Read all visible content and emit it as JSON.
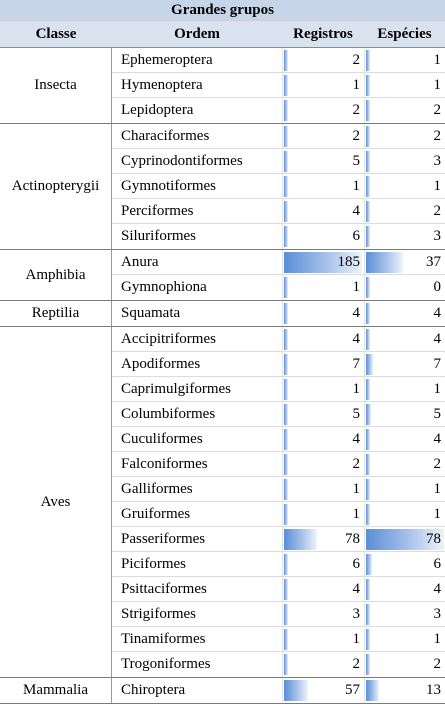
{
  "title": "Grandes grupos",
  "headers": {
    "classe": "Classe",
    "ordem": "Ordem",
    "registros": "Registros",
    "especies": "Espécies"
  },
  "max": {
    "registros": 185,
    "especies": 78
  },
  "colors": {
    "title_bg": "#c6d5e8",
    "header_bg": "#d9e3f0",
    "bar_start": "#5b8ed6",
    "bar_end": "#eef3fb"
  },
  "groups": [
    {
      "classe": "Insecta",
      "rows": [
        {
          "ordem": "Ephemeroptera",
          "registros": 2,
          "especies": 1
        },
        {
          "ordem": "Hymenoptera",
          "registros": 1,
          "especies": 1
        },
        {
          "ordem": "Lepidoptera",
          "registros": 2,
          "especies": 2
        }
      ]
    },
    {
      "classe": "Actinopterygii",
      "rows": [
        {
          "ordem": "Characiformes",
          "registros": 2,
          "especies": 2
        },
        {
          "ordem": "Cyprinodontiformes",
          "registros": 5,
          "especies": 3
        },
        {
          "ordem": "Gymnotiformes",
          "registros": 1,
          "especies": 1
        },
        {
          "ordem": "Perciformes",
          "registros": 4,
          "especies": 2
        },
        {
          "ordem": "Siluriformes",
          "registros": 6,
          "especies": 3
        }
      ]
    },
    {
      "classe": "Amphibia",
      "rows": [
        {
          "ordem": "Anura",
          "registros": 185,
          "especies": 37
        },
        {
          "ordem": "Gymnophiona",
          "registros": 1,
          "especies": 0
        }
      ]
    },
    {
      "classe": "Reptilia",
      "rows": [
        {
          "ordem": "Squamata",
          "registros": 4,
          "especies": 4
        }
      ]
    },
    {
      "classe": "Aves",
      "rows": [
        {
          "ordem": "Accipitriformes",
          "registros": 4,
          "especies": 4
        },
        {
          "ordem": "Apodiformes",
          "registros": 7,
          "especies": 7
        },
        {
          "ordem": "Caprimulgiformes",
          "registros": 1,
          "especies": 1
        },
        {
          "ordem": "Columbiformes",
          "registros": 5,
          "especies": 5
        },
        {
          "ordem": "Cuculiformes",
          "registros": 4,
          "especies": 4
        },
        {
          "ordem": "Falconiformes",
          "registros": 2,
          "especies": 2
        },
        {
          "ordem": "Galliformes",
          "registros": 1,
          "especies": 1
        },
        {
          "ordem": "Gruiformes",
          "registros": 1,
          "especies": 1
        },
        {
          "ordem": "Passeriformes",
          "registros": 78,
          "especies": 78
        },
        {
          "ordem": "Piciformes",
          "registros": 6,
          "especies": 6
        },
        {
          "ordem": "Psittaciformes",
          "registros": 4,
          "especies": 4
        },
        {
          "ordem": "Strigiformes",
          "registros": 3,
          "especies": 3
        },
        {
          "ordem": "Tinamiformes",
          "registros": 1,
          "especies": 1
        },
        {
          "ordem": "Trogoniformes",
          "registros": 2,
          "especies": 2
        }
      ]
    },
    {
      "classe": "Mammalia",
      "rows": [
        {
          "ordem": "Chiroptera",
          "registros": 57,
          "especies": 13
        }
      ]
    }
  ]
}
